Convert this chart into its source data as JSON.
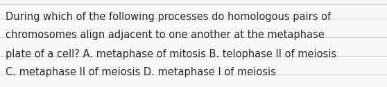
{
  "text_lines": [
    "During which of the following processes do homologous pairs of",
    "chromosomes align adjacent to one another at the metaphase",
    "plate of a cell? A. metaphase of mitosis B. telophase II of meiosis",
    "C. metaphase II of meiosis D. metaphase I of meiosis"
  ],
  "background_color": "#f8f8f8",
  "text_color": "#2a2a2a",
  "font_size": 10.5,
  "line_color": "#c8c8c8",
  "line_width": 0.6
}
